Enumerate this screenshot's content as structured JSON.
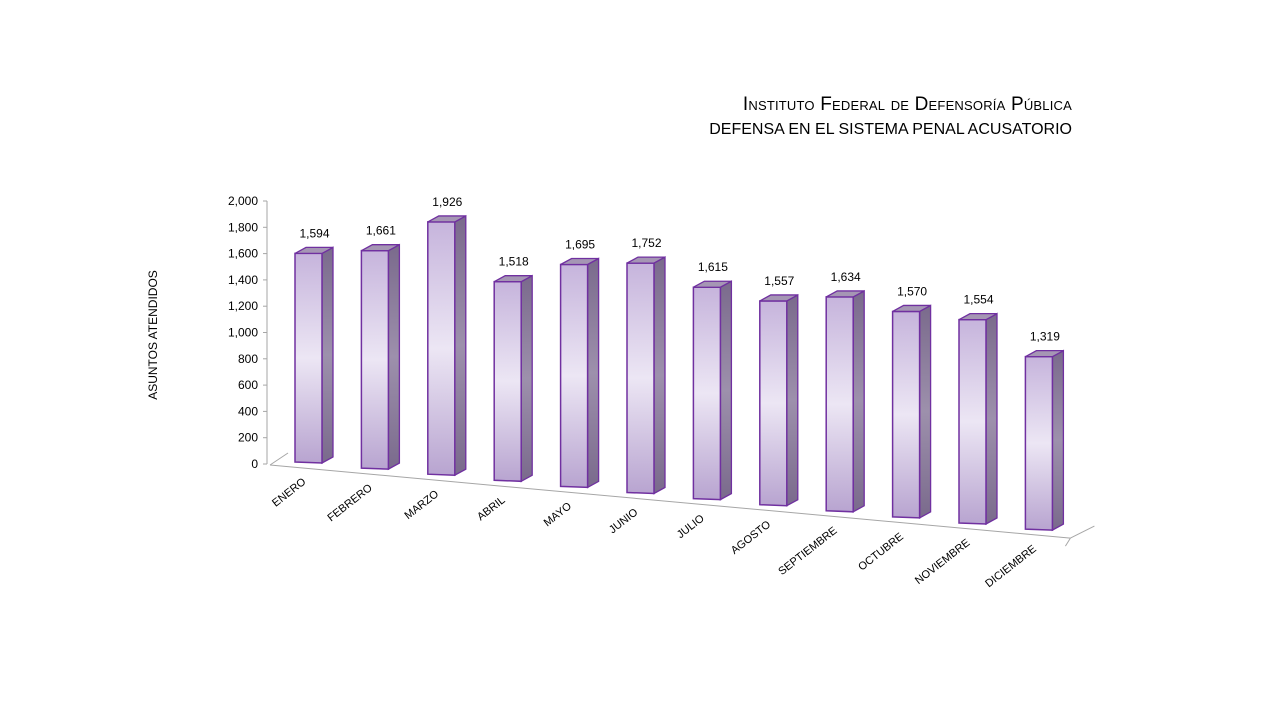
{
  "chart_data": {
    "type": "bar",
    "title": "Instituto Federal de Defensoría Pública",
    "subtitle": "DEFENSA EN EL SISTEMA PENAL ACUSATORIO",
    "ylabel": "ASUNTOS ATENDIDOS",
    "xlabel": "",
    "ylim": [
      0,
      2000
    ],
    "yticks": [
      0,
      200,
      400,
      600,
      800,
      1000,
      1200,
      1400,
      1600,
      1800,
      2000
    ],
    "ytick_labels": [
      "0",
      "200",
      "400",
      "600",
      "800",
      "1,000",
      "1,200",
      "1,400",
      "1,600",
      "1,800",
      "2,000"
    ],
    "categories": [
      "ENERO",
      "FEBRERO",
      "MARZO",
      "ABRIL",
      "MAYO",
      "JUNIO",
      "JULIO",
      "AGOSTO",
      "SEPTIEMBRE",
      "OCTUBRE",
      "NOVIEMBRE",
      "DICIEMBRE"
    ],
    "values": [
      1594,
      1661,
      1926,
      1518,
      1695,
      1752,
      1615,
      1557,
      1634,
      1570,
      1554,
      1319
    ],
    "value_labels": [
      "1,594",
      "1,661",
      "1,926",
      "1,518",
      "1,695",
      "1,752",
      "1,615",
      "1,557",
      "1,634",
      "1,570",
      "1,554",
      "1,319"
    ],
    "grid": false,
    "style": "3d-cylinder-columns",
    "colors": {
      "bar_edge": "#7030a0",
      "bar_light": "#ece6f4",
      "bar_mid": "#c6b4dc",
      "bar_side": "#7f6f8f",
      "bar_top": "#a596b4",
      "axis": "#a6a6a6"
    }
  }
}
